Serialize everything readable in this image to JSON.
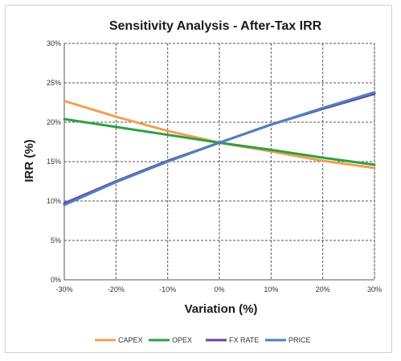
{
  "chart_data": {
    "type": "line",
    "title": "Sensitivity Analysis - After-Tax IRR",
    "xlabel": "Variation (%)",
    "ylabel": "IRR (%)",
    "x": [
      -30,
      -20,
      -10,
      0,
      10,
      20,
      30
    ],
    "x_ticks": [
      "-30%",
      "-20%",
      "-10%",
      "0%",
      "10%",
      "20%",
      "30%"
    ],
    "xlim": [
      -30,
      30
    ],
    "y_ticks": [
      "0%",
      "5%",
      "10%",
      "15%",
      "20%",
      "25%",
      "30%"
    ],
    "ylim": [
      0,
      30
    ],
    "grid": true,
    "legend_position": "bottom",
    "series": [
      {
        "name": "CAPEX",
        "color": "#F0A050",
        "values": [
          22.7,
          20.7,
          18.9,
          17.4,
          16.3,
          15.1,
          14.2
        ]
      },
      {
        "name": "OPEX",
        "color": "#2EA043",
        "values": [
          20.4,
          19.4,
          18.4,
          17.4,
          16.5,
          15.5,
          14.6
        ]
      },
      {
        "name": "FX RATE",
        "color": "#6A3FA0",
        "values": [
          9.7,
          12.5,
          15.1,
          17.4,
          19.7,
          21.7,
          23.6
        ]
      },
      {
        "name": "PRICE",
        "color": "#4F81BD",
        "values": [
          9.5,
          12.4,
          15.0,
          17.4,
          19.7,
          21.8,
          23.8
        ]
      }
    ]
  }
}
